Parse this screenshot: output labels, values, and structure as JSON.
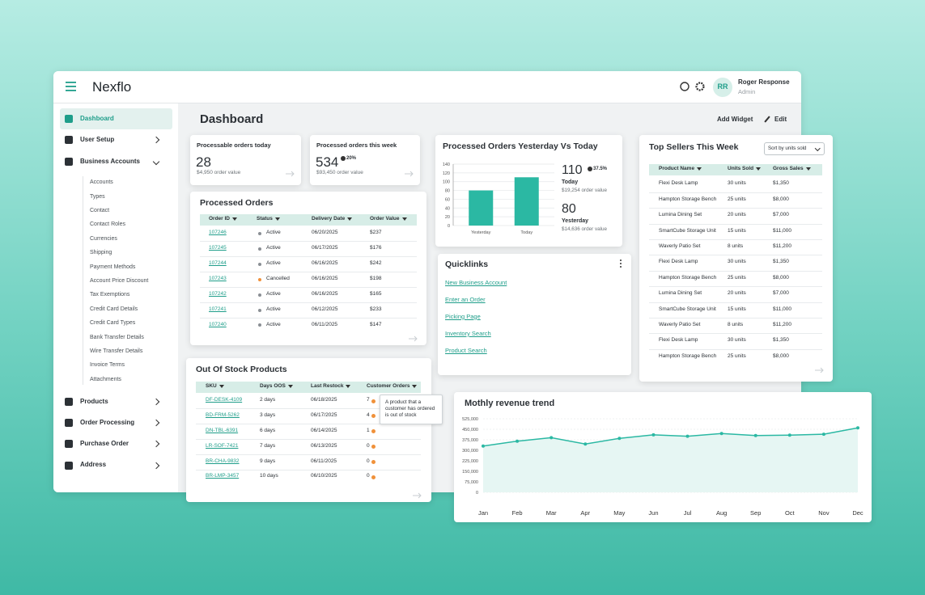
{
  "header": {
    "brand": "Nexflo",
    "initials": "RR",
    "user": "Roger Response",
    "role": "Admin"
  },
  "sidebar": {
    "items": [
      {
        "label": "Dashboard",
        "active": true
      },
      {
        "label": "User Setup"
      },
      {
        "label": "Business Accounts",
        "expanded": true,
        "children": [
          "Accounts",
          "Types",
          "Contact",
          "Contact Roles",
          "Currencies",
          "Shipping",
          "Payment Methods",
          "Account Price Discount",
          "Tax Exemptions",
          "Credit Card Details",
          "Credit Card Types",
          "Bank Transfer Details",
          "Wire Transfer Details",
          "Invoice Terms",
          "Attachments"
        ]
      },
      {
        "label": "Products"
      },
      {
        "label": "Order Processing"
      },
      {
        "label": "Purchase Order"
      },
      {
        "label": "Address"
      }
    ]
  },
  "page": {
    "title": "Dashboard",
    "actions": [
      "Add Widget",
      "Edit"
    ]
  },
  "kpis": [
    {
      "title": "Processable orders today",
      "value": "28",
      "subtext": "$4,950 order value"
    },
    {
      "title": "Processed orders this week",
      "value": "534",
      "change": "20%",
      "subtext": "$93,450 order value"
    }
  ],
  "processed_orders": {
    "title": "Processed Orders",
    "columns": [
      "Order ID",
      "Status",
      "Delivery Date",
      "Order Value"
    ],
    "rows": [
      {
        "id": "107246",
        "status": "Active",
        "status_color": "#8a8f94",
        "date": "06/20/2025",
        "value": "$237"
      },
      {
        "id": "107245",
        "status": "Active",
        "status_color": "#8a8f94",
        "date": "06/17/2025",
        "value": "$176"
      },
      {
        "id": "107244",
        "status": "Active",
        "status_color": "#8a8f94",
        "date": "06/16/2025",
        "value": "$242"
      },
      {
        "id": "107243",
        "status": "Cancelled",
        "status_color": "#f0913a",
        "date": "06/16/2025",
        "value": "$198"
      },
      {
        "id": "107242",
        "status": "Active",
        "status_color": "#8a8f94",
        "date": "06/16/2025",
        "value": "$165"
      },
      {
        "id": "107241",
        "status": "Active",
        "status_color": "#8a8f94",
        "date": "06/12/2025",
        "value": "$233"
      },
      {
        "id": "107240",
        "status": "Active",
        "status_color": "#8a8f94",
        "date": "06/11/2025",
        "value": "$147"
      }
    ]
  },
  "out_of_stock": {
    "title": "Out Of Stock Products",
    "columns": [
      "SKU",
      "Days OOS",
      "Last Restock",
      "Customer Orders"
    ],
    "tooltip": "A product that a customer has ordered is out of stock",
    "rows": [
      {
        "sku": "DF-DESK-4109",
        "days": "2 days",
        "restock": "06/18/2025",
        "orders": "7"
      },
      {
        "sku": "BD-FRM-5262",
        "days": "3 days",
        "restock": "06/17/2025",
        "orders": "4"
      },
      {
        "sku": "DN-TBL-6391",
        "days": "6 days",
        "restock": "06/14/2025",
        "orders": "1"
      },
      {
        "sku": "LR-SOF-7421",
        "days": "7 days",
        "restock": "06/13/2025",
        "orders": "0"
      },
      {
        "sku": "BR-CHA-9832",
        "days": "9 days",
        "restock": "06/11/2025",
        "orders": "0"
      },
      {
        "sku": "BR-LMP-3457",
        "days": "10 days",
        "restock": "06/10/2025",
        "orders": "0"
      }
    ]
  },
  "yesterday_today": {
    "title": "Processed Orders Yesterday Vs Today",
    "chart": {
      "type": "bar",
      "categories": [
        "Yesterday",
        "Today"
      ],
      "values": [
        80,
        110
      ],
      "color": "#2bb8a3",
      "ylim": [
        0,
        140
      ],
      "yticks": [
        0,
        20,
        40,
        60,
        80,
        100,
        120,
        140
      ],
      "grid": true
    },
    "stats": [
      {
        "value": "110",
        "change": "37.5%",
        "label": "Today",
        "subtext": "$19,254 order value"
      },
      {
        "value": "80",
        "label": "Yesterday",
        "subtext": "$14,636 order value"
      }
    ]
  },
  "quicklinks": {
    "title": "Quicklinks",
    "links": [
      "New Business Account",
      "Enter an Order",
      "Picking Page",
      "Inventory Search",
      "Product Search"
    ]
  },
  "top_sellers": {
    "title": "Top Sellers This Week",
    "sort": "Sort by units sold",
    "columns": [
      "Product Name",
      "Units Sold",
      "Gross Sales"
    ],
    "rows": [
      [
        "Flexi Desk Lamp",
        "30 units",
        "$1,350"
      ],
      [
        "Hampton Storage Bench",
        "25 units",
        "$8,000"
      ],
      [
        "Lumina Dining Set",
        "20 units",
        "$7,000"
      ],
      [
        "SmartCube Storage Unit",
        "15 units",
        "$11,000"
      ],
      [
        "Waverly Patio Set",
        "8 units",
        "$11,200"
      ],
      [
        "Flexi Desk Lamp",
        "30 units",
        "$1,350"
      ],
      [
        "Hampton Storage Bench",
        "25 units",
        "$8,000"
      ],
      [
        "Lumina Dining Set",
        "20 units",
        "$7,000"
      ],
      [
        "SmartCube Storage Unit",
        "15 units",
        "$11,000"
      ],
      [
        "Waverly Patio Set",
        "8 units",
        "$11,200"
      ],
      [
        "Flexi Desk Lamp",
        "30 units",
        "$1,350"
      ],
      [
        "Hampton Storage Bench",
        "25 units",
        "$8,000"
      ]
    ]
  },
  "revenue": {
    "title": "Mothly revenue trend",
    "chart": {
      "type": "line",
      "categories": [
        "Jan",
        "Feb",
        "Mar",
        "Apr",
        "May",
        "Jun",
        "Jul",
        "Aug",
        "Sep",
        "Oct",
        "Nov",
        "Dec"
      ],
      "values": [
        330000,
        365000,
        390000,
        345000,
        385000,
        410000,
        400000,
        420000,
        405000,
        408000,
        415000,
        460000
      ],
      "color": "#2bb8a3",
      "ylim": [
        0,
        525000
      ],
      "yticks": [
        0,
        {
          "value": 75000,
          "label": "75,000"
        },
        {
          "value": 150000,
          "label": "150,000"
        },
        {
          "value": 225000,
          "label": "225,000"
        },
        {
          "value": 300000,
          "label": "300,000"
        },
        {
          "value": 375000,
          "label": "375,000"
        },
        {
          "value": 450000,
          "label": "450,000"
        },
        {
          "value": 525000,
          "label": "525,000"
        }
      ],
      "grid": true
    }
  }
}
